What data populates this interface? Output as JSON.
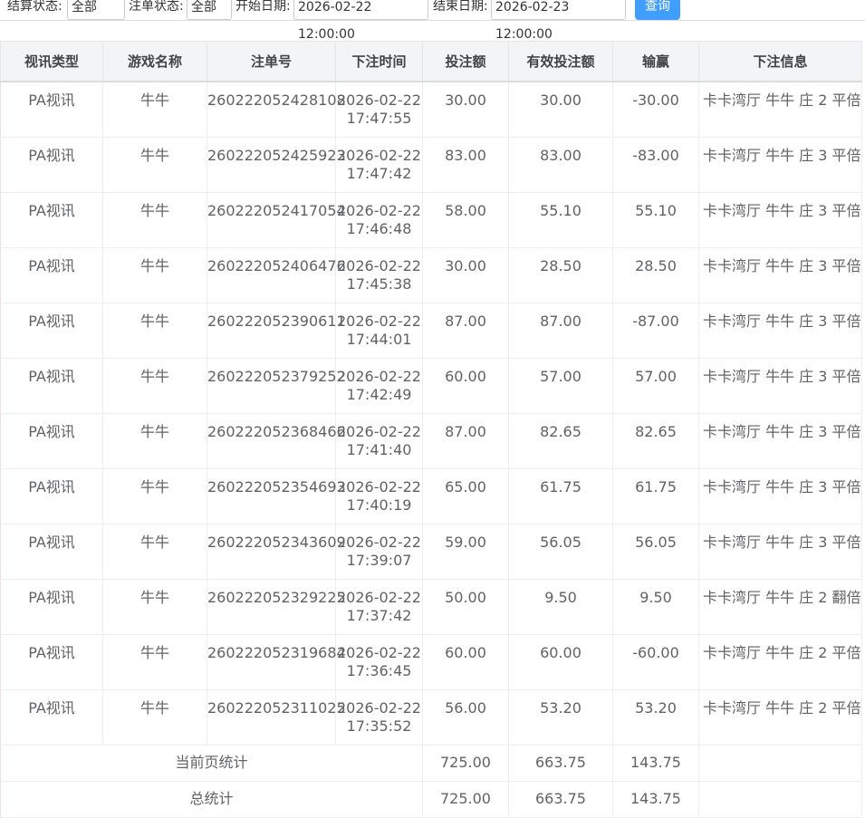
{
  "filters": {
    "settle_label": "结算状态:",
    "settle_value": "全部",
    "order_label": "注单状态:",
    "order_value": "全部",
    "start_label": "开始日期:",
    "start_value": "2026-02-22 12:00:00",
    "end_label": "结束日期:",
    "end_value": "2026-02-23 12:00:00",
    "button": "查询"
  },
  "table": {
    "headers": [
      "视讯类型",
      "游戏名称",
      "注单号",
      "下注时间",
      "投注额",
      "有效投注额",
      "输赢",
      "下注信息"
    ],
    "rows": [
      [
        "PA视讯",
        "牛牛",
        "260222052428108",
        "2026-02-22 17:47:55",
        "30.00",
        "30.00",
        "-30.00",
        "卡卡湾厅 牛牛 庄 2 平倍"
      ],
      [
        "PA视讯",
        "牛牛",
        "260222052425923",
        "2026-02-22 17:47:42",
        "83.00",
        "83.00",
        "-83.00",
        "卡卡湾厅 牛牛 庄 3 平倍"
      ],
      [
        "PA视讯",
        "牛牛",
        "260222052417054",
        "2026-02-22 17:46:48",
        "58.00",
        "55.10",
        "55.10",
        "卡卡湾厅 牛牛 庄 3 平倍"
      ],
      [
        "PA视讯",
        "牛牛",
        "260222052406476",
        "2026-02-22 17:45:38",
        "30.00",
        "28.50",
        "28.50",
        "卡卡湾厅 牛牛 庄 3 平倍"
      ],
      [
        "PA视讯",
        "牛牛",
        "260222052390611",
        "2026-02-22 17:44:01",
        "87.00",
        "87.00",
        "-87.00",
        "卡卡湾厅 牛牛 庄 3 平倍"
      ],
      [
        "PA视讯",
        "牛牛",
        "260222052379252",
        "2026-02-22 17:42:49",
        "60.00",
        "57.00",
        "57.00",
        "卡卡湾厅 牛牛 庄 3 平倍"
      ],
      [
        "PA视讯",
        "牛牛",
        "260222052368466",
        "2026-02-22 17:41:40",
        "87.00",
        "82.65",
        "82.65",
        "卡卡湾厅 牛牛 庄 3 平倍"
      ],
      [
        "PA视讯",
        "牛牛",
        "260222052354693",
        "2026-02-22 17:40:19",
        "65.00",
        "61.75",
        "61.75",
        "卡卡湾厅 牛牛 庄 3 平倍"
      ],
      [
        "PA视讯",
        "牛牛",
        "260222052343609",
        "2026-02-22 17:39:07",
        "59.00",
        "56.05",
        "56.05",
        "卡卡湾厅 牛牛 庄 3 平倍"
      ],
      [
        "PA视讯",
        "牛牛",
        "260222052329225",
        "2026-02-22 17:37:42",
        "50.00",
        "9.50",
        "9.50",
        "卡卡湾厅 牛牛 庄 2 翻倍"
      ],
      [
        "PA视讯",
        "牛牛",
        "260222052319684",
        "2026-02-22 17:36:45",
        "60.00",
        "60.00",
        "-60.00",
        "卡卡湾厅 牛牛 庄 2 平倍"
      ],
      [
        "PA视讯",
        "牛牛",
        "260222052311025",
        "2026-02-22 17:35:52",
        "56.00",
        "53.20",
        "53.20",
        "卡卡湾厅 牛牛 庄 2 平倍"
      ]
    ],
    "summary": [
      {
        "label": "当前页统计",
        "values": [
          "725.00",
          "663.75",
          "143.75"
        ]
      },
      {
        "label": "总统计",
        "values": [
          "725.00",
          "663.75",
          "143.75"
        ]
      }
    ]
  }
}
